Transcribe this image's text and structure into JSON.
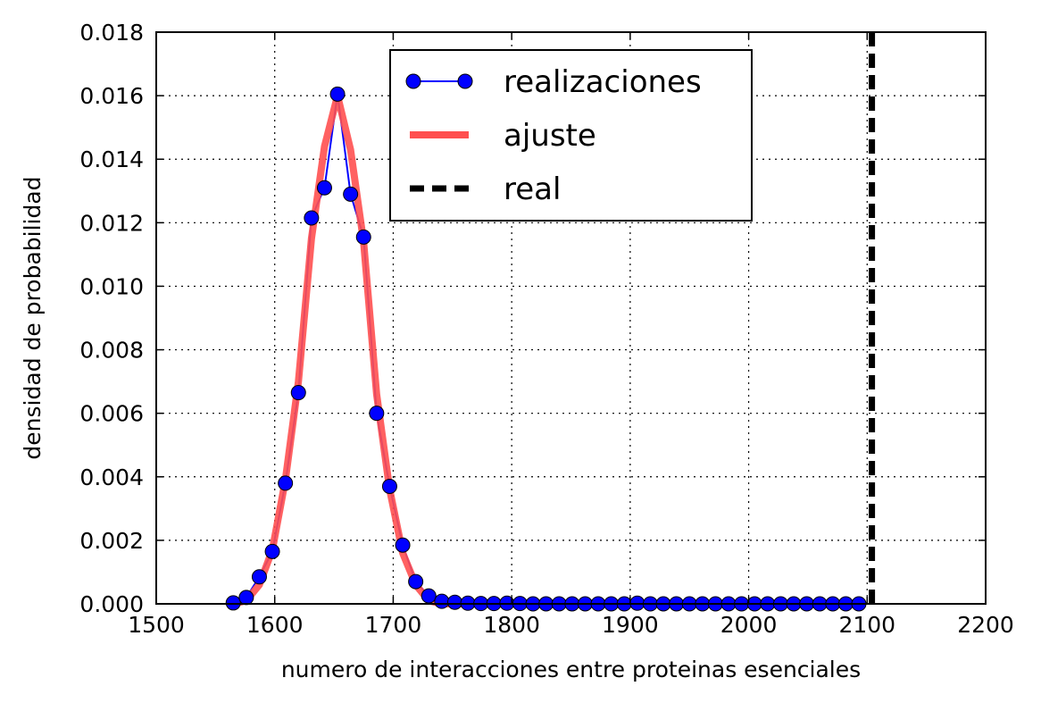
{
  "chart_data": {
    "type": "line",
    "xlabel": "numero de interacciones entre proteinas esenciales",
    "ylabel": "densidad de probabilidad",
    "xlim": [
      1500,
      2200
    ],
    "ylim": [
      0,
      0.018
    ],
    "xticks": [
      "1500",
      "1600",
      "1700",
      "1800",
      "1900",
      "2000",
      "2100",
      "2200"
    ],
    "yticks": [
      "0.000",
      "0.002",
      "0.004",
      "0.006",
      "0.008",
      "0.010",
      "0.012",
      "0.014",
      "0.016",
      "0.018"
    ],
    "grid": true,
    "legend_position": "top-center",
    "series": [
      {
        "name": "realizaciones",
        "color": "#0000ff",
        "marker": "circle",
        "x": [
          1565,
          1576,
          1587,
          1598,
          1609,
          1620,
          1631,
          1642,
          1653,
          1664,
          1675,
          1686,
          1697,
          1708,
          1719,
          1730,
          1741,
          1752,
          1763,
          1774,
          1785,
          1796,
          1807,
          1818,
          1829,
          1840,
          1851,
          1862,
          1873,
          1884,
          1895,
          1906,
          1917,
          1928,
          1939,
          1950,
          1961,
          1972,
          1983,
          1994,
          2005,
          2016,
          2027,
          2038,
          2049,
          2060,
          2071,
          2082,
          2093
        ],
        "y": [
          3e-05,
          0.0002,
          0.00085,
          0.00165,
          0.0038,
          0.00665,
          0.01215,
          0.0131,
          0.01605,
          0.0129,
          0.01155,
          0.006,
          0.0037,
          0.00185,
          0.0007,
          0.00025,
          8e-05,
          5e-05,
          2e-05,
          1e-05,
          1e-05,
          2e-05,
          1e-05,
          0,
          0,
          0,
          0,
          0,
          0,
          0,
          0,
          2e-05,
          0,
          0,
          0,
          0,
          0,
          0,
          0,
          0,
          0,
          0,
          0,
          0,
          0,
          0,
          0,
          0,
          0
        ]
      },
      {
        "name": "ajuste",
        "color": "#ff5050",
        "x": [
          1565,
          1576,
          1587,
          1598,
          1609,
          1620,
          1631,
          1642,
          1653,
          1664,
          1675,
          1686,
          1697,
          1708,
          1719,
          1730,
          1741,
          1752,
          1763,
          1774,
          1785,
          1796,
          1807,
          1818,
          1829,
          1840,
          1851,
          1862,
          1873,
          1884,
          1895,
          1906,
          1917,
          1928,
          1939,
          1950,
          1961,
          1972,
          1983,
          1994,
          2005,
          2016,
          2027,
          2038,
          2049,
          2060,
          2071,
          2082,
          2093
        ],
        "y": [
          0,
          0.0001,
          0.0006,
          0.0017,
          0.0039,
          0.007,
          0.0115,
          0.0144,
          0.016,
          0.0143,
          0.0114,
          0.0066,
          0.0036,
          0.0016,
          0.0006,
          0.0001,
          0,
          0,
          0,
          0,
          0,
          0,
          0,
          0,
          0,
          0,
          0,
          0,
          0,
          0,
          0,
          0,
          0,
          0,
          0,
          0,
          0,
          0,
          0,
          0,
          0,
          0,
          0,
          0,
          0,
          0,
          0,
          0,
          0
        ]
      },
      {
        "name": "real",
        "color": "#000000",
        "style": "dashed",
        "x_value": 2104
      }
    ]
  }
}
